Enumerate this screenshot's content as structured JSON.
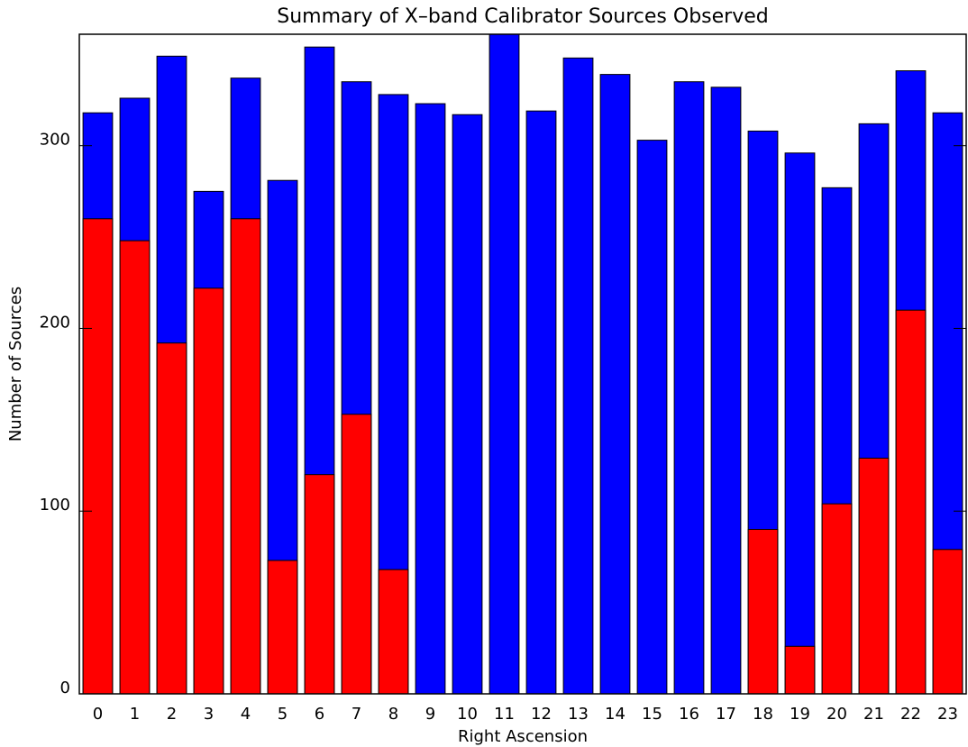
{
  "chart_data": {
    "type": "bar",
    "title": "Summary of X–band Calibrator Sources Observed",
    "x_label": "Right Ascension",
    "y_label": "Number of Sources",
    "categories": [
      "0",
      "1",
      "2",
      "3",
      "4",
      "5",
      "6",
      "7",
      "8",
      "9",
      "10",
      "11",
      "12",
      "13",
      "14",
      "15",
      "16",
      "17",
      "18",
      "19",
      "20",
      "21",
      "22",
      "23"
    ],
    "series": [
      {
        "color": "#0000ff",
        "values": [
          318,
          326,
          349,
          275,
          337,
          281,
          354,
          335,
          328,
          323,
          317,
          361,
          319,
          348,
          339,
          303,
          335,
          332,
          308,
          296,
          277,
          312,
          341,
          318
        ]
      },
      {
        "color": "#ff0000",
        "values": [
          260,
          248,
          192,
          222,
          260,
          73,
          120,
          153,
          68,
          0,
          0,
          0,
          0,
          0,
          0,
          0,
          0,
          0,
          90,
          26,
          104,
          129,
          210,
          79
        ]
      }
    ],
    "ylim": [
      0,
      361
    ],
    "yticks": [
      0,
      100,
      200,
      300
    ]
  }
}
